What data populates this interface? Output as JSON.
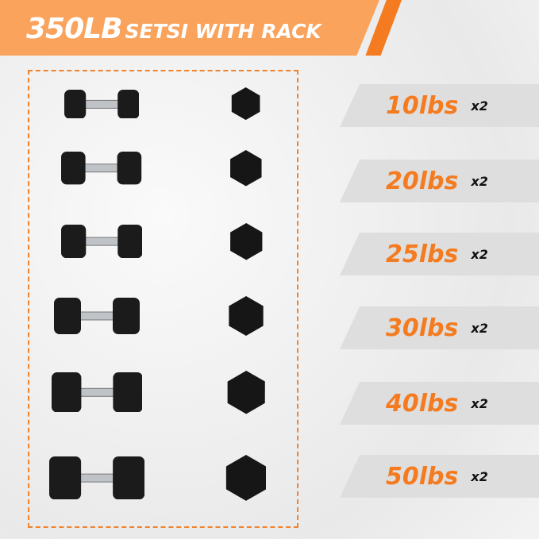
{
  "header": {
    "weight": "350LB",
    "subtitle": "SETSI WITH RACK"
  },
  "colors": {
    "banner": "#f9a35c",
    "accent": "#f47b1f",
    "band": "#dedede"
  },
  "items": [
    {
      "weight": "10lbs",
      "qty": "x2"
    },
    {
      "weight": "20lbs",
      "qty": "x2"
    },
    {
      "weight": "25lbs",
      "qty": "x2"
    },
    {
      "weight": "30lbs",
      "qty": "x2"
    },
    {
      "weight": "40lbs",
      "qty": "x2"
    },
    {
      "weight": "50lbs",
      "qty": "x2"
    }
  ]
}
